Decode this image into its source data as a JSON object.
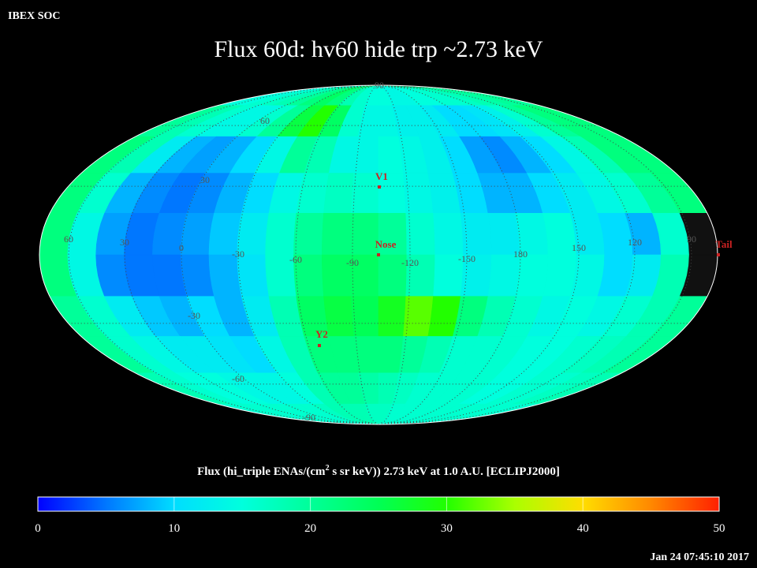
{
  "header": {
    "source": "IBEX SOC",
    "title": "Flux   60d: hv60 hide trp ~2.73 keV",
    "timestamp": "Jan 24 07:45:10 2017"
  },
  "map": {
    "projection": "mollweide",
    "missing_color": "#111111",
    "flux": [
      [
        15,
        15,
        16,
        17,
        18,
        20,
        22,
        24,
        22,
        18,
        16,
        15,
        15,
        14,
        14,
        15,
        15,
        16,
        16,
        17,
        18,
        19,
        20,
        20
      ],
      [
        20,
        18,
        16,
        14,
        14,
        16,
        20,
        26,
        30,
        24,
        16,
        14,
        14,
        13,
        13,
        12,
        10,
        10,
        11,
        13,
        16,
        20,
        22,
        22
      ],
      [
        22,
        18,
        12,
        8,
        7,
        8,
        10,
        14,
        20,
        18,
        14,
        14,
        15,
        14,
        13,
        10,
        7,
        6,
        8,
        10,
        14,
        18,
        22,
        22
      ],
      [
        22,
        16,
        8,
        6,
        5,
        6,
        8,
        10,
        14,
        16,
        17,
        16,
        15,
        14,
        13,
        10,
        8,
        8,
        10,
        12,
        14,
        16,
        20,
        22
      ],
      [
        22,
        14,
        7,
        5,
        6,
        7,
        9,
        12,
        16,
        20,
        22,
        22,
        20,
        16,
        14,
        12,
        12,
        14,
        15,
        12,
        10,
        8,
        16,
        null
      ],
      [
        22,
        14,
        6,
        5,
        5,
        6,
        8,
        11,
        16,
        22,
        24,
        24,
        22,
        18,
        15,
        13,
        14,
        15,
        15,
        14,
        10,
        12,
        18,
        null
      ],
      [
        20,
        16,
        12,
        9,
        8,
        10,
        8,
        12,
        18,
        24,
        26,
        25,
        28,
        32,
        30,
        22,
        18,
        16,
        14,
        15,
        14,
        16,
        18,
        20
      ],
      [
        20,
        16,
        14,
        12,
        12,
        11,
        10,
        14,
        18,
        22,
        22,
        22,
        22,
        20,
        18,
        16,
        16,
        16,
        15,
        15,
        16,
        17,
        18,
        20
      ],
      [
        18,
        16,
        15,
        15,
        14,
        14,
        14,
        15,
        18,
        20,
        20,
        19,
        18,
        17,
        16,
        16,
        16,
        16,
        15,
        15,
        16,
        16,
        17,
        18
      ],
      [
        16,
        16,
        16,
        16,
        16,
        16,
        16,
        17,
        18,
        18,
        18,
        17,
        17,
        16,
        16,
        16,
        16,
        16,
        16,
        16,
        16,
        16,
        16,
        16
      ]
    ],
    "lon_labels": [
      60,
      30,
      0,
      -30,
      -60,
      -90,
      -120,
      -150,
      180,
      150,
      120,
      90
    ],
    "lat_labels": [
      90,
      60,
      30,
      -30,
      -60,
      -90
    ],
    "markers": [
      "V1",
      "Nose",
      "Y2",
      "Tail"
    ],
    "marker_color": "#cc2222",
    "grid_color": "#444444"
  },
  "colorbar": {
    "caption_pre": "Flux (hi_triple ENAs/(cm",
    "caption_sup": "2",
    "caption_post": " s sr keV))  2.73 keV at 1.0 A.U. [ECLIPJ2000]",
    "ticks": [
      0,
      10,
      20,
      30,
      40,
      50
    ],
    "colors": [
      "#0000ff",
      "#0077ff",
      "#00ddff",
      "#00ffdd",
      "#00ff99",
      "#00ff55",
      "#22ff00",
      "#aaff00",
      "#ffdd00",
      "#ff8800",
      "#ff2000"
    ]
  }
}
